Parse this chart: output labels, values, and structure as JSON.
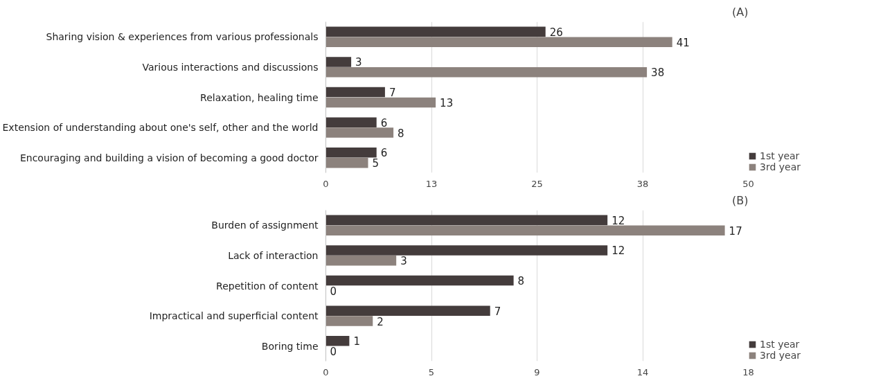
{
  "chart_data": [
    {
      "type": "bar",
      "orientation": "horizontal",
      "categories": [
        "Sharing vision & experiences from various professionals",
        "Various interactions and discussions",
        "Relaxation, healing time",
        "Extension of understanding about one's self, other and the world",
        "Encouraging and building a vision of becoming a good doctor"
      ],
      "series": [
        {
          "name": "1st year",
          "color": "#443c3c",
          "values": [
            26,
            3,
            7,
            6,
            6
          ]
        },
        {
          "name": "3rd year",
          "color": "#8c827d",
          "values": [
            41,
            38,
            13,
            8,
            5
          ]
        }
      ],
      "xlim": [
        0,
        50
      ],
      "xticks": [
        0,
        {
          "value": 12.5,
          "label": "13"
        },
        25,
        {
          "value": 37.5,
          "label": "38"
        },
        50
      ],
      "grid": "x",
      "legend": "bottom right",
      "data_labels": true,
      "annotations": [
        "(A)"
      ]
    },
    {
      "type": "bar",
      "orientation": "horizontal",
      "categories": [
        "Burden of assignment",
        "Lack of interaction",
        "Repetition of content",
        "Impractical and superficial content",
        "Boring time"
      ],
      "series": [
        {
          "name": "1st year",
          "color": "#443c3c",
          "values": [
            12,
            12,
            8,
            7,
            1
          ]
        },
        {
          "name": "3rd year",
          "color": "#8c827d",
          "values": [
            17,
            3,
            0,
            2,
            0
          ]
        }
      ],
      "xlim": [
        0,
        18
      ],
      "xticks": [
        0,
        {
          "value": 4.5,
          "label": "5"
        },
        9,
        {
          "value": 13.5,
          "label": "14"
        },
        18
      ],
      "grid": "x",
      "legend": "bottom right",
      "data_labels": true,
      "annotations": [
        "(B)"
      ]
    }
  ]
}
